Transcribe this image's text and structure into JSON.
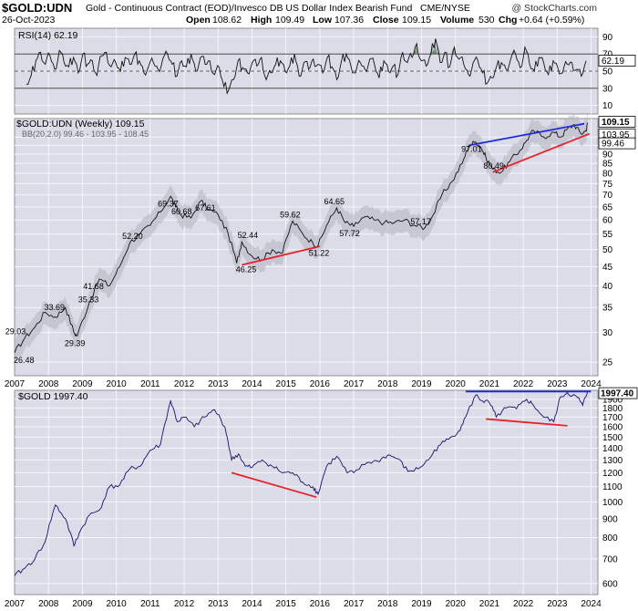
{
  "header": {
    "symbol": "$GOLD:UDN",
    "description": "Gold - Continuous Contract (EOD)/Invesco DB US Dollar Index Bearish Fund",
    "exchange": "CME/NYSE",
    "date": "26-Oct-2023",
    "open_label": "Open",
    "open": "108.62",
    "high_label": "High",
    "high": "109.49",
    "low_label": "Low",
    "low": "107.36",
    "close_label": "Close",
    "close": "109.15",
    "volume_label": "Volume",
    "volume": "530",
    "chg_label": "Chg",
    "chg": "+0.64 (+0.59%)",
    "watermark": "@ StockCharts.com"
  },
  "colors": {
    "panel_bg": "#dcdce8",
    "grid": "#f4f4fb",
    "price_line": "#111111",
    "bb_band": "#b8b8c4",
    "blue_trend": "#1f2bd6",
    "red_trend": "#e8202a",
    "gold_line": "#13136e",
    "rsi_fill": "#3a6b3a"
  },
  "chart_data": [
    {
      "type": "line",
      "name": "rsi-panel",
      "label": "RSI(14) 62.19",
      "current": 62.19,
      "current_label": "62.19",
      "ylim": [
        0,
        100
      ],
      "yticks": [
        10,
        30,
        50,
        70,
        90
      ],
      "reference_lines": [
        30,
        50,
        70
      ],
      "series": [
        {
          "values": [
            35,
            45,
            62,
            72,
            58,
            68,
            52,
            74,
            60,
            55,
            66,
            48,
            70,
            58,
            62,
            45,
            68,
            72,
            55,
            60,
            50,
            66,
            58,
            70,
            62,
            48,
            56,
            60,
            52,
            64,
            70,
            58,
            44,
            62,
            55,
            70,
            50,
            66,
            58,
            62,
            46,
            54,
            32,
            28,
            40,
            62,
            54,
            48,
            60,
            56,
            66,
            40,
            48,
            58,
            62,
            50,
            56,
            70,
            44,
            60,
            52,
            64,
            58,
            48,
            66,
            55,
            40,
            62,
            70,
            56,
            48,
            60,
            52,
            64,
            58,
            42,
            62,
            50,
            56,
            46,
            72,
            60,
            66,
            82,
            62,
            56,
            70,
            88,
            60,
            72,
            55,
            78,
            64,
            58,
            46,
            60,
            62,
            48,
            36,
            42,
            56,
            60,
            52,
            64,
            70,
            54,
            78,
            58,
            50,
            66,
            60,
            46,
            62,
            54,
            48,
            58,
            60,
            52,
            44,
            62
          ]
        }
      ]
    },
    {
      "type": "line",
      "name": "ratio-panel",
      "label": "$GOLD:UDN (Weekly) 109.15",
      "bb_label": "BB(20,2.0) 99.46 - 103.95 - 108.45",
      "x_range": [
        2007.0,
        2023.9
      ],
      "ylim": [
        23,
        112
      ],
      "yticks": [
        25,
        30,
        35,
        40,
        45,
        50,
        55,
        60,
        65,
        70,
        75,
        80,
        85,
        90,
        95,
        100
      ],
      "tags": [
        {
          "label": "109.15",
          "value": 109.15
        },
        {
          "label": "103.95",
          "value": 103.95
        },
        {
          "label": "99.46",
          "value": 99.46
        }
      ],
      "series": [
        {
          "x": [
            2007.0,
            2007.3,
            2007.6,
            2007.9,
            2008.2,
            2008.5,
            2008.75,
            2008.85,
            2009.2,
            2009.5,
            2009.8,
            2010.1,
            2010.4,
            2010.7,
            2011.0,
            2011.3,
            2011.6,
            2011.75,
            2011.9,
            2012.2,
            2012.5,
            2012.7,
            2013.0,
            2013.3,
            2013.55,
            2013.7,
            2014.0,
            2014.3,
            2014.6,
            2014.9,
            2015.2,
            2015.5,
            2015.8,
            2015.95,
            2016.2,
            2016.5,
            2016.75,
            2017.0,
            2017.3,
            2017.6,
            2017.9,
            2018.2,
            2018.5,
            2018.8,
            2019.1,
            2019.35,
            2019.6,
            2019.9,
            2020.2,
            2020.4,
            2020.6,
            2020.75,
            2020.9,
            2021.1,
            2021.35,
            2021.6,
            2021.9,
            2022.1,
            2022.3,
            2022.6,
            2022.9,
            2023.1,
            2023.3,
            2023.5,
            2023.7,
            2023.85,
            2023.9
          ],
          "values": [
            26.5,
            29,
            31,
            34,
            33,
            35,
            30,
            29.4,
            36,
            41.7,
            40,
            45,
            52.2,
            55,
            58,
            63,
            69.4,
            65,
            62,
            60.7,
            67.6,
            64,
            62,
            55,
            46,
            52.4,
            48,
            47,
            50,
            49,
            59.6,
            55,
            52,
            51.2,
            58,
            64.6,
            59,
            57.7,
            61,
            60,
            59,
            59,
            60,
            58,
            57.2,
            62,
            70,
            76,
            85,
            95,
            97,
            94,
            88,
            82,
            80.5,
            86,
            92,
            98,
            104,
            100,
            103,
            100,
            105,
            108,
            102,
            104,
            109.15
          ]
        }
      ],
      "annotations": [
        {
          "label": "29.03",
          "x": 2007.1,
          "y": 29.03
        },
        {
          "label": "26.48",
          "x": 2007.35,
          "y": 26.48
        },
        {
          "label": "33.69",
          "x": 2008.25,
          "y": 33.69
        },
        {
          "label": "29.39",
          "x": 2008.85,
          "y": 29.39
        },
        {
          "label": "35.33",
          "x": 2009.25,
          "y": 35.33
        },
        {
          "label": "41.68",
          "x": 2009.4,
          "y": 41.68
        },
        {
          "label": "52.20",
          "x": 2010.55,
          "y": 52.2
        },
        {
          "label": "69.37",
          "x": 2011.6,
          "y": 69.37
        },
        {
          "label": "60.68",
          "x": 2012.0,
          "y": 60.68
        },
        {
          "label": "67.61",
          "x": 2012.7,
          "y": 67.61
        },
        {
          "label": "52.44",
          "x": 2013.95,
          "y": 52.44
        },
        {
          "label": "46.25",
          "x": 2013.9,
          "y": 46.25
        },
        {
          "label": "59.62",
          "x": 2015.2,
          "y": 59.62
        },
        {
          "label": "51.22",
          "x": 2016.05,
          "y": 51.22
        },
        {
          "label": "64.65",
          "x": 2016.5,
          "y": 64.65
        },
        {
          "label": "57.72",
          "x": 2016.95,
          "y": 57.72
        },
        {
          "label": "57.17",
          "x": 2019.05,
          "y": 57.17
        },
        {
          "label": "97.01",
          "x": 2020.55,
          "y": 97.01
        },
        {
          "label": "80.49",
          "x": 2021.2,
          "y": 80.49
        }
      ],
      "trendlines": [
        {
          "color": "blue",
          "x": [
            2020.4,
            2023.8
          ],
          "y": [
            95,
            108.5
          ]
        },
        {
          "color": "red",
          "x": [
            2021.1,
            2023.95
          ],
          "y": [
            80.5,
            102
          ]
        },
        {
          "color": "red",
          "x": [
            2013.7,
            2016.0
          ],
          "y": [
            45.5,
            51
          ]
        }
      ]
    },
    {
      "type": "line",
      "name": "gold-panel",
      "label": "$GOLD 1997.40",
      "ylim": [
        560,
        2010
      ],
      "yticks": [
        600,
        700,
        800,
        900,
        1000,
        1100,
        1200,
        1300,
        1400,
        1500,
        1600,
        1700,
        1800,
        1900
      ],
      "tag": {
        "label": "1997.40",
        "value": 1997.4
      },
      "series": [
        {
          "x": [
            2007.0,
            2007.3,
            2007.6,
            2007.9,
            2008.2,
            2008.5,
            2008.75,
            2008.9,
            2009.2,
            2009.5,
            2009.8,
            2010.1,
            2010.4,
            2010.7,
            2011.0,
            2011.3,
            2011.6,
            2011.8,
            2012.0,
            2012.3,
            2012.6,
            2012.9,
            2013.2,
            2013.4,
            2013.6,
            2013.8,
            2014.0,
            2014.3,
            2014.6,
            2014.9,
            2015.2,
            2015.5,
            2015.8,
            2015.95,
            2016.2,
            2016.5,
            2016.8,
            2017.0,
            2017.4,
            2017.7,
            2018.0,
            2018.3,
            2018.6,
            2018.9,
            2019.2,
            2019.5,
            2019.8,
            2020.1,
            2020.3,
            2020.6,
            2020.8,
            2021.0,
            2021.2,
            2021.5,
            2021.8,
            2022.1,
            2022.3,
            2022.6,
            2022.9,
            2023.1,
            2023.3,
            2023.6,
            2023.75,
            2023.9
          ],
          "values": [
            630,
            660,
            700,
            780,
            980,
            900,
            760,
            820,
            920,
            950,
            1100,
            1110,
            1230,
            1250,
            1380,
            1430,
            1880,
            1650,
            1700,
            1600,
            1700,
            1780,
            1600,
            1300,
            1350,
            1250,
            1240,
            1300,
            1250,
            1200,
            1200,
            1130,
            1100,
            1050,
            1250,
            1330,
            1200,
            1200,
            1280,
            1290,
            1340,
            1310,
            1210,
            1230,
            1300,
            1420,
            1480,
            1560,
            1700,
            1950,
            1880,
            1860,
            1700,
            1800,
            1790,
            1900,
            1830,
            1700,
            1650,
            1930,
            1980,
            1920,
            1830,
            1997.4
          ]
        }
      ],
      "trendlines": [
        {
          "color": "blue",
          "x": [
            2020.3,
            2024.0
          ],
          "y": [
            1995,
            1995
          ]
        },
        {
          "color": "red",
          "x": [
            2020.9,
            2023.3
          ],
          "y": [
            1680,
            1610
          ]
        },
        {
          "color": "red",
          "x": [
            2013.4,
            2015.9
          ],
          "y": [
            1200,
            1030
          ]
        }
      ]
    }
  ],
  "x_axis": {
    "labels": [
      "2007",
      "2008",
      "2009",
      "2010",
      "2011",
      "2012",
      "2013",
      "2014",
      "2015",
      "2016",
      "2017",
      "2018",
      "2019",
      "2020",
      "2021",
      "2022",
      "2023",
      "2024"
    ],
    "values": [
      2007,
      2008,
      2009,
      2010,
      2011,
      2012,
      2013,
      2014,
      2015,
      2016,
      2017,
      2018,
      2019,
      2020,
      2021,
      2022,
      2023,
      2024
    ]
  }
}
